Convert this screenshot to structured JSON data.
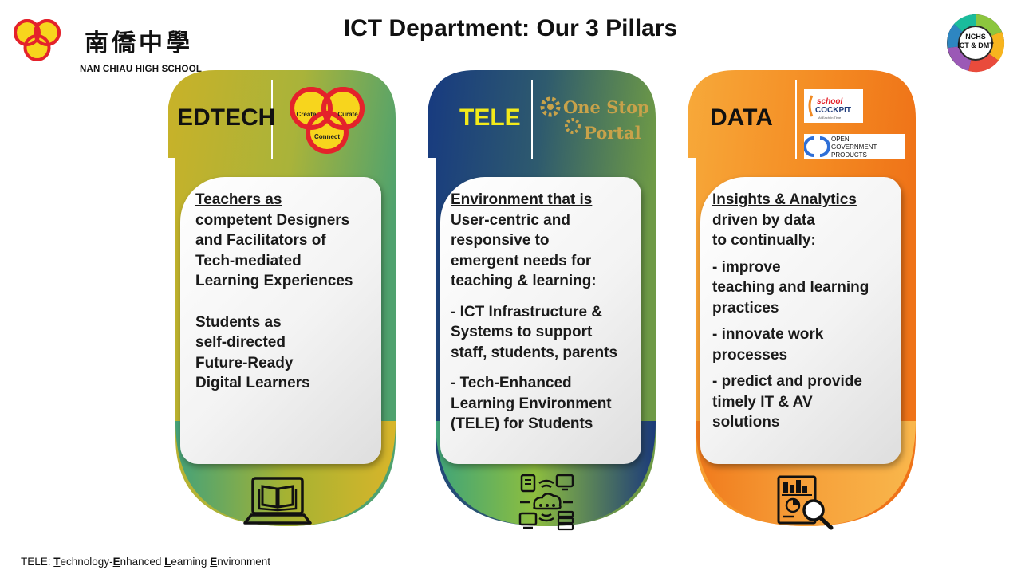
{
  "header": {
    "school_name_cn": "南僑中學",
    "school_name_en": "NAN CHIAU HIGH SCHOOL",
    "title": "ICT Department: Our 3 Pillars",
    "badge": {
      "line1": "NCHS",
      "line2": "ICT & DMT"
    }
  },
  "pillars": [
    {
      "label": "EDTECH",
      "logo": {
        "create": "Create",
        "curate": "Curate",
        "connect": "Connect"
      },
      "lines": [
        "Teachers as",
        "competent Designers",
        "and Facilitators of",
        "Tech-mediated",
        "Learning Experiences",
        "Students as",
        "self-directed",
        "Future-Ready",
        "Digital Learners"
      ],
      "icon": "laptop-book-icon"
    },
    {
      "label": "TELE",
      "logo": {
        "line1": "One Stop",
        "line2": "Portal"
      },
      "lines": [
        "Environment that is",
        "User-centric and",
        "responsive to",
        "emergent needs for",
        "teaching & learning:",
        "- ICT Infrastructure  &",
        "Systems to support",
        "staff, students, parents",
        "- Tech-Enhanced",
        "Learning Environment",
        "(TELE) for Students"
      ],
      "icon": "cloud-network-icon"
    },
    {
      "label": "DATA",
      "logo": {
        "cockpit_line1": "school",
        "cockpit_line2": "COCKPIT",
        "cockpit_tag": "At Each In Time",
        "ogp_line1": "OPEN",
        "ogp_line2": "GOVERNMENT",
        "ogp_line3": "PRODUCTS"
      },
      "lines": [
        "Insights & Analytics",
        "driven by data",
        "to continually:",
        "- improve",
        "teaching and learning",
        "practices",
        "- innovate work",
        "processes",
        "- predict and provide",
        "timely IT & AV",
        "solutions"
      ],
      "icon": "data-analytics-icon"
    }
  ],
  "footnote": {
    "prefix": "TELE: ",
    "t1": "T",
    "r1": "echnology-",
    "t2": "E",
    "r2": "nhanced ",
    "t3": "L",
    "r3": "earning ",
    "t4": "E",
    "r4": "nvironment"
  },
  "colors": {
    "edtech_gold": "#c4b12a",
    "edtech_green": "#58a56a",
    "tele_navy": "#1b3a7a",
    "tele_green": "#8cbd3f",
    "data_orange": "#f08a24",
    "data_light": "#f8b346",
    "school_red": "#e4222b",
    "school_yellow": "#f7d51d",
    "label_yellow": "#f3ea1a"
  }
}
